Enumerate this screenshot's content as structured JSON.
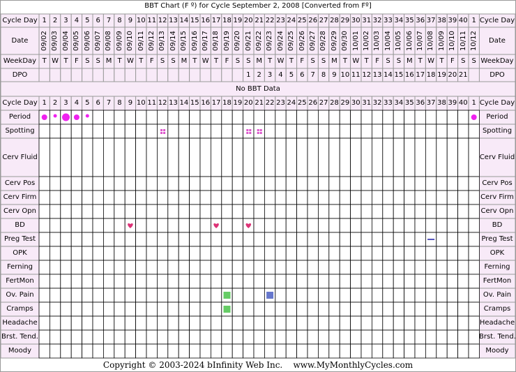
{
  "chart_data": {
    "type": "table",
    "title": "BBT Chart (F º) for Cycle September 2, 2008  [Converted from Fº]",
    "no_data_text": "No BBT Data",
    "copyright": "Copyright © 2003-2024 bInfinity Web Inc.    www.MyMonthlyCycles.com",
    "cycle_days": [
      "1",
      "2",
      "3",
      "4",
      "5",
      "6",
      "7",
      "8",
      "9",
      "10",
      "11",
      "12",
      "13",
      "14",
      "15",
      "16",
      "17",
      "18",
      "19",
      "20",
      "21",
      "22",
      "23",
      "24",
      "25",
      "26",
      "27",
      "28",
      "29",
      "30",
      "31",
      "32",
      "33",
      "34",
      "35",
      "36",
      "37",
      "38",
      "39",
      "40",
      "1"
    ],
    "dates": [
      "09/02",
      "09/03",
      "09/04",
      "09/05",
      "09/06",
      "09/07",
      "09/08",
      "09/09",
      "09/10",
      "09/11",
      "09/12",
      "09/13",
      "09/14",
      "09/15",
      "09/16",
      "09/17",
      "09/18",
      "09/19",
      "09/20",
      "09/21",
      "09/22",
      "09/23",
      "09/24",
      "09/25",
      "09/26",
      "09/27",
      "09/28",
      "09/29",
      "09/30",
      "10/01",
      "10/02",
      "10/03",
      "10/04",
      "10/05",
      "10/06",
      "10/07",
      "10/08",
      "10/09",
      "10/10",
      "10/11",
      "10/12"
    ],
    "weekdays": [
      "T",
      "W",
      "T",
      "F",
      "S",
      "S",
      "M",
      "T",
      "W",
      "T",
      "F",
      "S",
      "S",
      "M",
      "T",
      "W",
      "T",
      "F",
      "S",
      "S",
      "M",
      "T",
      "W",
      "T",
      "F",
      "S",
      "S",
      "M",
      "T",
      "W",
      "T",
      "F",
      "S",
      "S",
      "M",
      "T",
      "W",
      "T",
      "F",
      "S",
      "S"
    ],
    "dpo": [
      "",
      "",
      "",
      "",
      "",
      "",
      "",
      "",
      "",
      "",
      "",
      "",
      "",
      "",
      "",
      "",
      "",
      "",
      "",
      "1",
      "2",
      "3",
      "4",
      "5",
      "6",
      "7",
      "8",
      "9",
      "10",
      "11",
      "12",
      "13",
      "14",
      "15",
      "16",
      "17",
      "18",
      "19",
      "20",
      "21",
      ""
    ],
    "labels": {
      "cycle_day": "Cycle Day",
      "date": "Date",
      "weekday": "WeekDay",
      "dpo": "DPO",
      "period": "Period",
      "spotting": "Spotting",
      "cerv_fluid": "Cerv Fluid",
      "cerv_pos": "Cerv Pos",
      "cerv_firm": "Cerv Firm",
      "cerv_opn": "Cerv Opn",
      "bd": "BD",
      "preg_test": "Preg Test",
      "opk": "OPK",
      "ferning": "Ferning",
      "fertmon": "FertMon",
      "ov_pain": "Ov. Pain",
      "cramps": "Cramps",
      "headache": "Headache",
      "brst_tend": "Brst. Tend.",
      "moody": "Moody"
    },
    "period": [
      {
        "day_index": 0,
        "size": "medium"
      },
      {
        "day_index": 1,
        "size": "small"
      },
      {
        "day_index": 2,
        "size": "large"
      },
      {
        "day_index": 3,
        "size": "medium"
      },
      {
        "day_index": 4,
        "size": "small"
      },
      {
        "day_index": 40,
        "size": "medium"
      }
    ],
    "spotting_days": [
      11,
      19,
      20
    ],
    "bd_days": [
      8,
      16,
      19
    ],
    "preg_test": [
      {
        "day_index": 36,
        "result": "negative"
      }
    ],
    "ov_pain": [
      {
        "day_index": 17,
        "color": "#66cc66"
      },
      {
        "day_index": 21,
        "color": "#6677cc"
      }
    ],
    "cramps": [
      {
        "day_index": 17,
        "color": "#66cc66"
      }
    ],
    "colors": {
      "label_bg": "#f8eaf8",
      "border": "#999999",
      "grid_line": "#000000",
      "period": "#ee22ee",
      "spotting": "#dd55cc",
      "bd": "#dd3377",
      "preg_negative": "#5555bb"
    }
  }
}
